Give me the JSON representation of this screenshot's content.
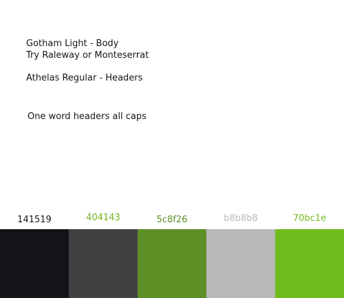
{
  "notes": {
    "body_font": "Gotham Light - Body",
    "alternatives": "Try Raleway or Monteserrat",
    "header_font": "Athelas Regular - Headers",
    "header_rule": "One word headers all caps"
  },
  "palette": [
    {
      "label": "141519",
      "color": "#141519",
      "label_color": "#141519"
    },
    {
      "label": "404143",
      "color": "#404143",
      "label_color": "#6fb51f"
    },
    {
      "label": "5c8f26",
      "color": "#5c8f26",
      "label_color": "#5c8f26"
    },
    {
      "label": "b8b8b8",
      "color": "#b8b8b8",
      "label_color": "#b8b8b8"
    },
    {
      "label": "70bc1e",
      "color": "#70bc1e",
      "label_color": "#70bc1e"
    }
  ]
}
